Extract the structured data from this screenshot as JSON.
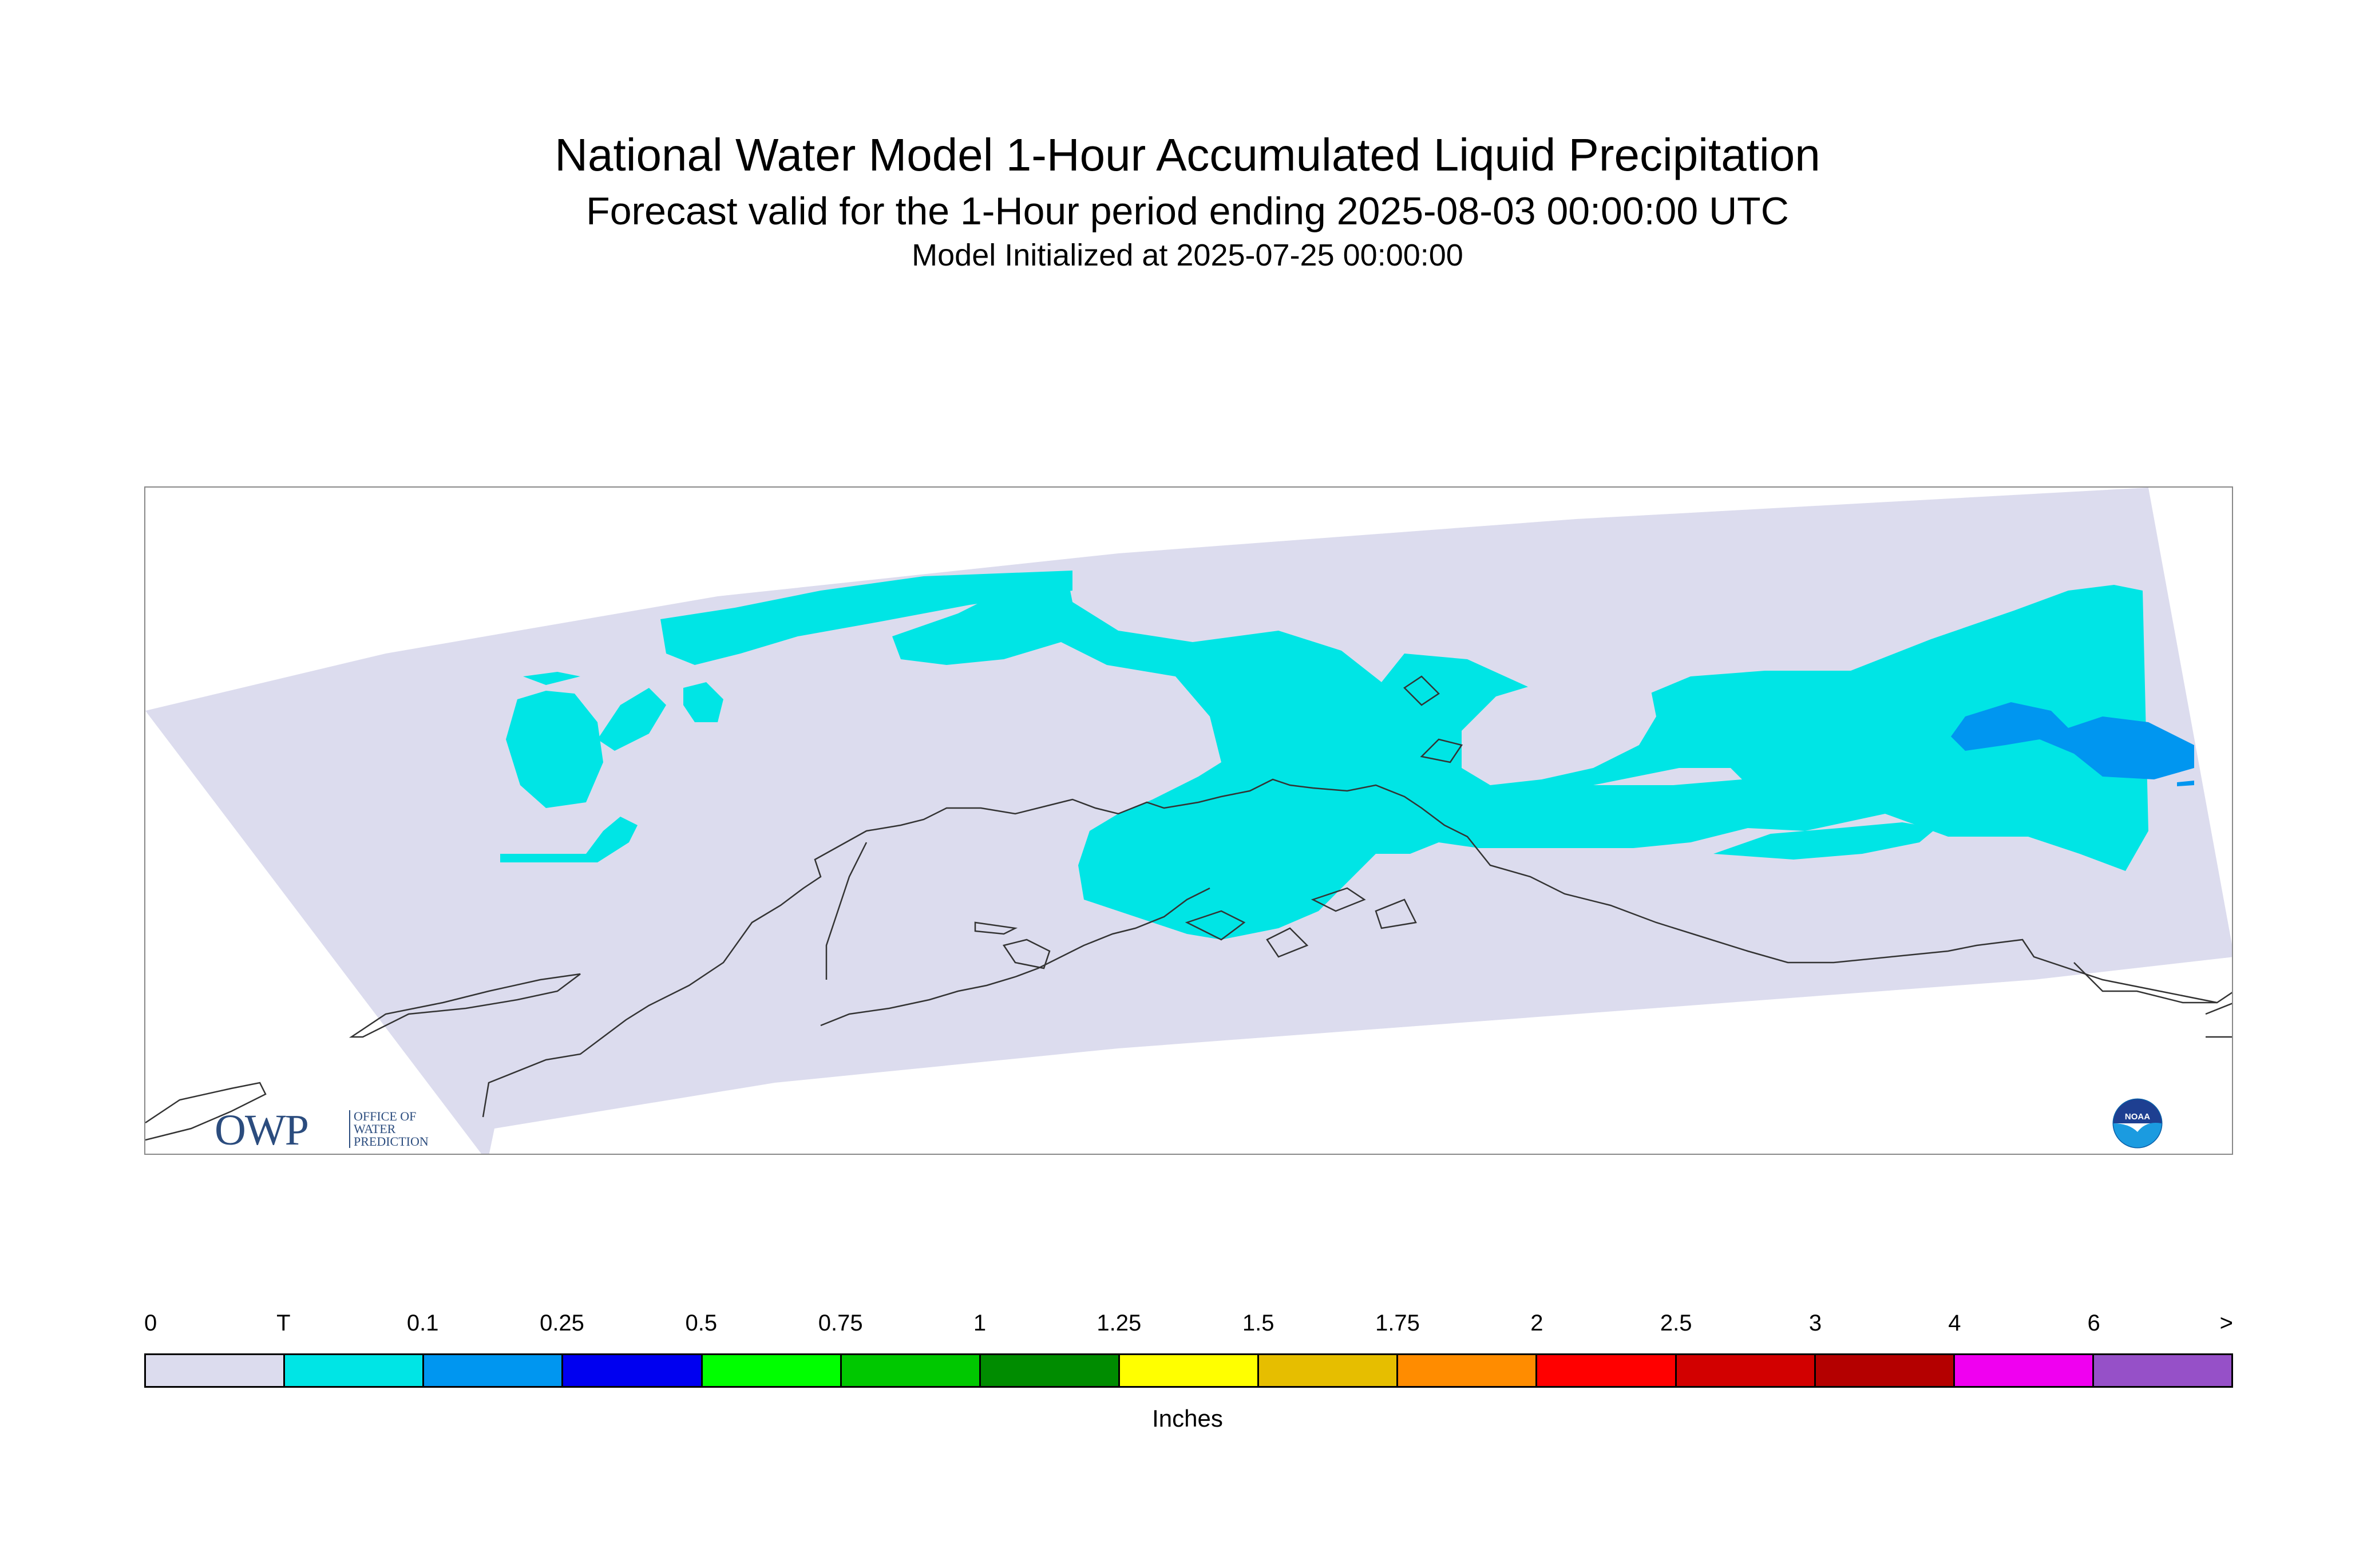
{
  "title": "National Water Model 1-Hour Accumulated Liquid Precipitation",
  "subtitle": "Forecast valid for the 1-Hour period ending 2025-08-03 00:00:00 UTC",
  "init_line": "Model Initialized at 2025-07-25 00:00:00",
  "map": {
    "domain_color": "#dcdcee",
    "coast_color": "#333333",
    "region": "Alaska",
    "precip_classes_present": [
      "T",
      "0.1"
    ]
  },
  "logos": {
    "owp_mark": "OWP",
    "owp_text": [
      "OFFICE OF",
      "WATER",
      "PREDICTION"
    ],
    "noaa_text": "NOAA"
  },
  "legend": {
    "ticks": [
      "0",
      "T",
      "0.1",
      "0.25",
      "0.5",
      "0.75",
      "1",
      "1.25",
      "1.5",
      "1.75",
      "2",
      "2.5",
      "3",
      "4",
      "6",
      ">"
    ],
    "colors": [
      "#dcdcee",
      "#00e5e5",
      "#0096f0",
      "#0000f0",
      "#00ff00",
      "#00c800",
      "#008c00",
      "#ffff00",
      "#e6be00",
      "#ff8c00",
      "#ff0000",
      "#d20000",
      "#b40000",
      "#f000f0",
      "#9650c8"
    ],
    "units": "Inches"
  }
}
